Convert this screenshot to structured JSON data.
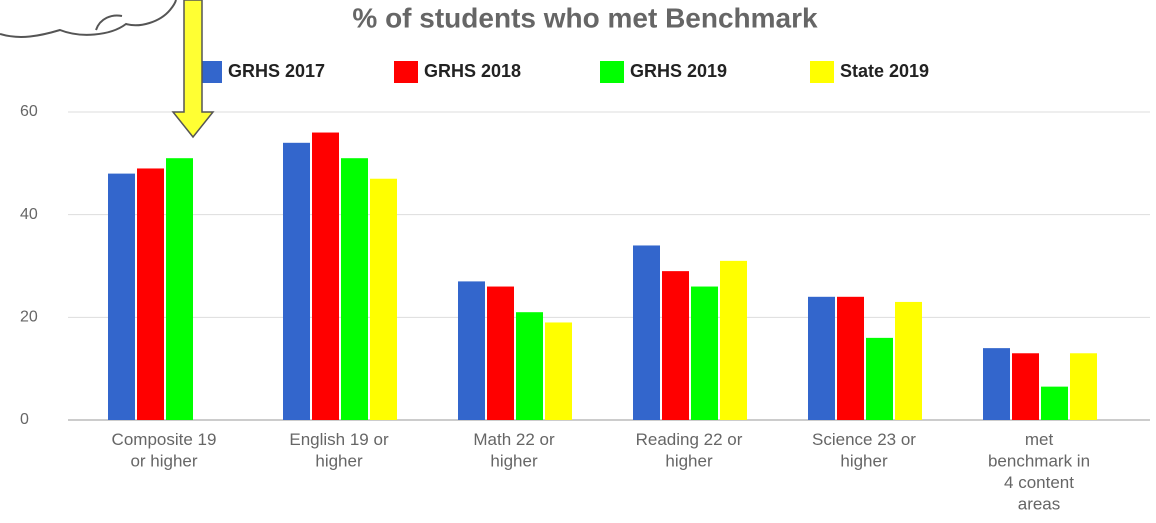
{
  "chart_data": {
    "type": "bar",
    "title": "% of students who met Benchmark",
    "categories": [
      [
        "Composite 19",
        "or higher"
      ],
      [
        "English 19 or",
        "higher"
      ],
      [
        "Math 22 or",
        "higher"
      ],
      [
        "Reading 22 or",
        "higher"
      ],
      [
        "Science 23 or",
        "higher"
      ],
      [
        "met",
        "benchmark in",
        "4 content",
        "areas"
      ]
    ],
    "series": [
      {
        "name": "GRHS 2017",
        "color": "#3366cc",
        "values": [
          48,
          54,
          27,
          34,
          24,
          14
        ]
      },
      {
        "name": "GRHS 2018",
        "color": "#ff0000",
        "values": [
          49,
          56,
          26,
          29,
          24,
          13
        ]
      },
      {
        "name": "GRHS 2019",
        "color": "#00ff00",
        "values": [
          51,
          51,
          21,
          26,
          16,
          6.5
        ]
      },
      {
        "name": "State 2019",
        "color": "#ffff00",
        "values": [
          null,
          47,
          19,
          31,
          23,
          13
        ]
      }
    ],
    "ylim": [
      0,
      60
    ],
    "yticks": [
      0,
      20,
      40,
      60
    ],
    "grid": true,
    "legend": "top"
  }
}
